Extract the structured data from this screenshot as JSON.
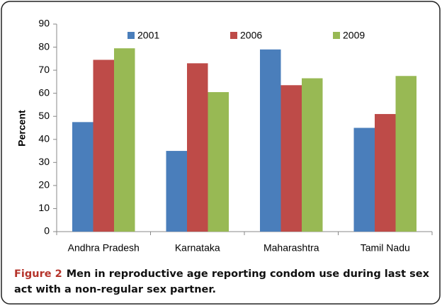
{
  "chart_data": {
    "type": "bar",
    "ylabel": "Percent",
    "categories": [
      "Andhra Pradesh",
      "Karnataka",
      "Maharashtra",
      "Tamil Nadu"
    ],
    "series": [
      {
        "name": "2001",
        "color": "#4a7ebb",
        "values": [
          47.5,
          35,
          79,
          45
        ]
      },
      {
        "name": "2006",
        "color": "#be4b48",
        "values": [
          74.5,
          73,
          63.5,
          51
        ]
      },
      {
        "name": "2009",
        "color": "#98b954",
        "values": [
          79.5,
          60.5,
          66.5,
          67.5
        ]
      }
    ],
    "ylim": [
      0,
      90
    ],
    "yticks": [
      0,
      10,
      20,
      30,
      40,
      50,
      60,
      70,
      80,
      90
    ],
    "grid": false,
    "legend": "top"
  },
  "caption_label": "Figure 2",
  "caption": "Men in reproductive age reporting condom use during last sex act with a non-regular sex partner."
}
